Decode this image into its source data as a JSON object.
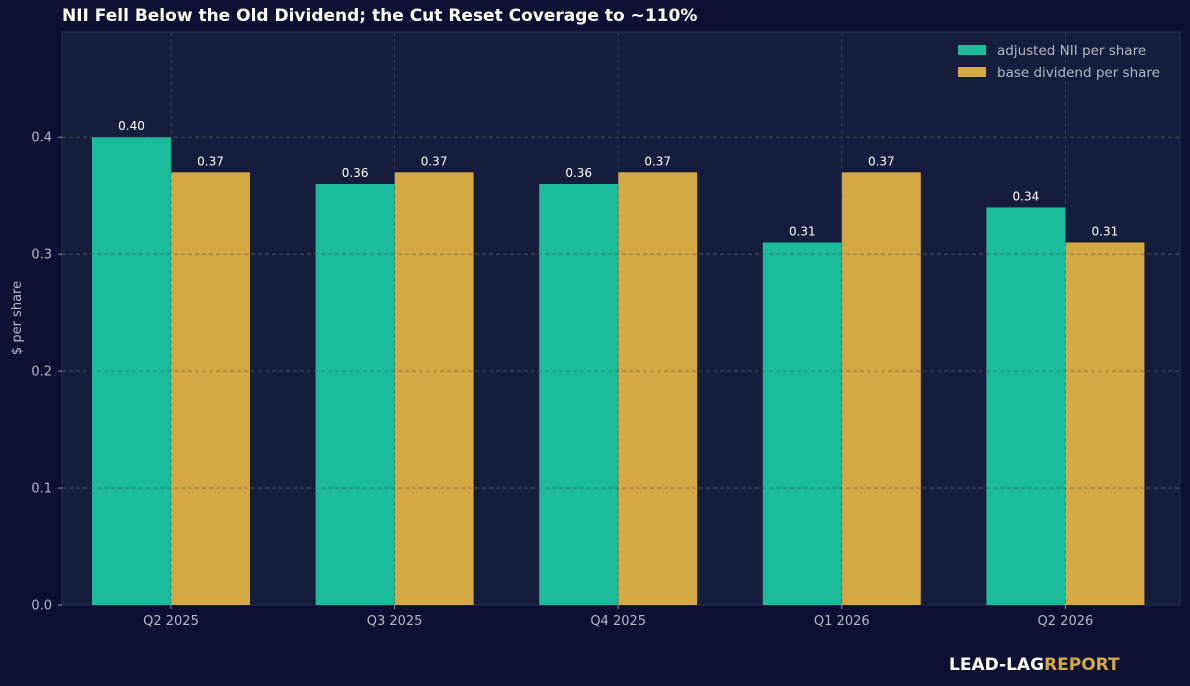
{
  "chart_data": {
    "type": "bar",
    "title": "NII Fell Below the Old Dividend; the Cut Reset Coverage to ~110%",
    "xlabel": "",
    "ylabel": "$ per share",
    "ylim": [
      0,
      0.49
    ],
    "yticks": [
      0.0,
      0.1,
      0.2,
      0.3,
      0.4
    ],
    "ytick_labels": [
      "0.0",
      "0.1",
      "0.2",
      "0.3",
      "0.4"
    ],
    "categories": [
      "Q2 2025",
      "Q3 2025",
      "Q4 2025",
      "Q1 2026",
      "Q2 2026"
    ],
    "series": [
      {
        "name": "adjusted NII per share",
        "values": [
          0.4,
          0.36,
          0.36,
          0.31,
          0.34
        ],
        "labels": [
          "0.40",
          "0.36",
          "0.36",
          "0.31",
          "0.34"
        ],
        "color": "#1abc9c"
      },
      {
        "name": "base dividend per share",
        "values": [
          0.37,
          0.37,
          0.37,
          0.37,
          0.31
        ],
        "labels": [
          "0.37",
          "0.37",
          "0.37",
          "0.37",
          "0.31"
        ],
        "color": "#d4a843"
      }
    ],
    "grid": true,
    "legend_position": "top-right"
  },
  "colors": {
    "background": "#0e1033",
    "plot_background": "#161c3b",
    "grid": "#5a6072",
    "tick_text": "#b3b8c6",
    "value_label": "#ffffff"
  },
  "brand": {
    "lead": "LEAD-LAG",
    "report": "REPORT"
  }
}
